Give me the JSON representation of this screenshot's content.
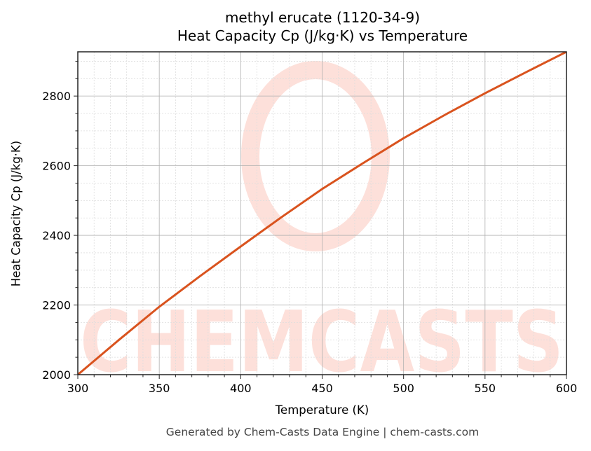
{
  "title": {
    "line1": "methyl erucate (1120-34-9)",
    "line2": "Heat Capacity Cp (J/kg·K) vs Temperature"
  },
  "footer": "Generated by Chem-Casts Data Engine | chem-casts.com",
  "watermark": "CHEMCASTS",
  "colors": {
    "line": "#d9531e",
    "watermark": "#fde0da",
    "major_grid": "#b0b0b0",
    "minor_grid": "#dddddd"
  },
  "chart_data": {
    "type": "line",
    "title": "methyl erucate (1120-34-9)\nHeat Capacity Cp (J/kg·K) vs Temperature",
    "xlabel": "Temperature (K)",
    "ylabel": "Heat Capacity Cp (J/kg·K)",
    "xlim": [
      300,
      600
    ],
    "ylim": [
      2000,
      2927
    ],
    "xticks": [
      300,
      350,
      400,
      450,
      500,
      550,
      600
    ],
    "yticks": [
      2000,
      2200,
      2400,
      2600,
      2800
    ],
    "x_minor_step": 10,
    "y_minor_step": 50,
    "grid": true,
    "legend": null,
    "series": [
      {
        "name": "Cp",
        "x": [
          300,
          325,
          350,
          375,
          400,
          425,
          450,
          475,
          500,
          525,
          550,
          575,
          600
        ],
        "values": [
          2000,
          2099,
          2195,
          2283,
          2368,
          2452,
          2533,
          2607,
          2679,
          2745,
          2808,
          2868,
          2927
        ]
      }
    ]
  }
}
